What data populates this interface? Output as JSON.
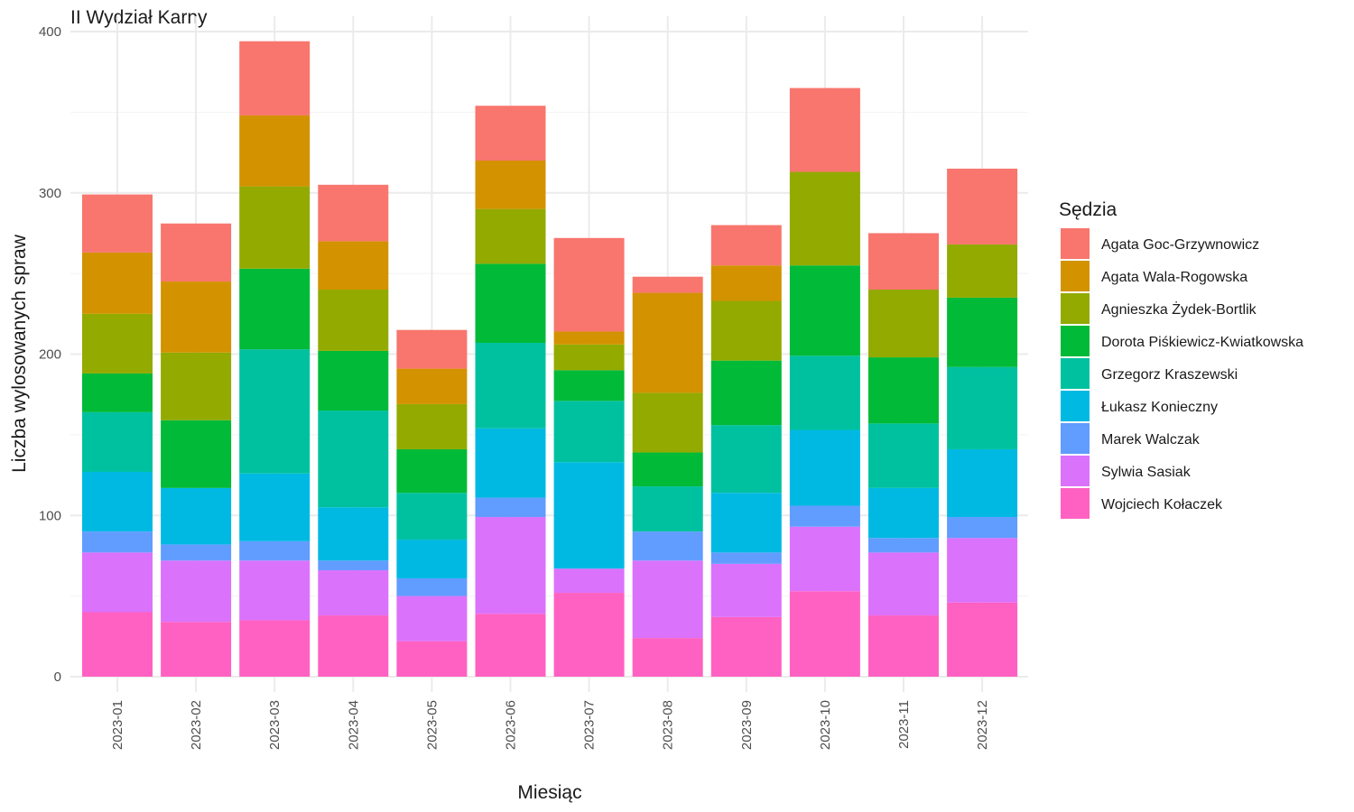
{
  "chart_data": {
    "type": "bar",
    "stacked": true,
    "title": "II Wydział Karny",
    "xlabel": "Miesiąc",
    "ylabel": "Liczba wylosowanych spraw",
    "ylim": [
      0,
      400
    ],
    "yticks": [
      0,
      100,
      200,
      300,
      400
    ],
    "grid": true,
    "legend_title": "Sędzia",
    "legend_position": "right",
    "categories": [
      "2023-01",
      "2023-02",
      "2023-03",
      "2023-04",
      "2023-05",
      "2023-06",
      "2023-07",
      "2023-08",
      "2023-09",
      "2023-10",
      "2023-11",
      "2023-12"
    ],
    "series": [
      {
        "name": "Wojciech Kołaczek",
        "color": "#FF61C3",
        "values": [
          40,
          34,
          35,
          38,
          22,
          39,
          52,
          24,
          37,
          53,
          38,
          46
        ]
      },
      {
        "name": "Sylwia Sasiak",
        "color": "#DB72FB",
        "values": [
          37,
          38,
          37,
          28,
          28,
          60,
          15,
          48,
          33,
          40,
          39,
          40
        ]
      },
      {
        "name": "Marek Walczak",
        "color": "#619CFF",
        "values": [
          13,
          10,
          12,
          6,
          11,
          12,
          0,
          18,
          7,
          13,
          9,
          13
        ]
      },
      {
        "name": "Łukasz Konieczny",
        "color": "#00B9E3",
        "values": [
          37,
          35,
          42,
          33,
          24,
          43,
          66,
          0,
          37,
          47,
          31,
          42
        ]
      },
      {
        "name": "Grzegorz Kraszewski",
        "color": "#00C19F",
        "values": [
          37,
          0,
          77,
          60,
          29,
          53,
          38,
          28,
          42,
          46,
          40,
          51
        ]
      },
      {
        "name": "Dorota Piśkiewicz-Kwiatkowska",
        "color": "#00BA38",
        "values": [
          24,
          42,
          50,
          37,
          27,
          49,
          19,
          21,
          40,
          56,
          41,
          43
        ]
      },
      {
        "name": "Agnieszka Żydek-Bortlik",
        "color": "#93AA00",
        "values": [
          37,
          42,
          51,
          38,
          28,
          34,
          16,
          37,
          37,
          58,
          42,
          33
        ]
      },
      {
        "name": "Agata Wala-Rogowska",
        "color": "#D39200",
        "values": [
          38,
          44,
          44,
          30,
          22,
          30,
          8,
          62,
          22,
          0,
          0,
          0
        ]
      },
      {
        "name": "Agata Goc-Grzywnowicz",
        "color": "#F8766D",
        "values": [
          36,
          36,
          46,
          35,
          24,
          34,
          58,
          10,
          25,
          52,
          35,
          47
        ]
      }
    ],
    "legend_order": [
      "Agata Goc-Grzywnowicz",
      "Agata Wala-Rogowska",
      "Agnieszka Żydek-Bortlik",
      "Dorota Piśkiewicz-Kwiatkowska",
      "Grzegorz Kraszewski",
      "Łukasz Konieczny",
      "Marek Walczak",
      "Sylwia Sasiak",
      "Wojciech Kołaczek"
    ]
  }
}
